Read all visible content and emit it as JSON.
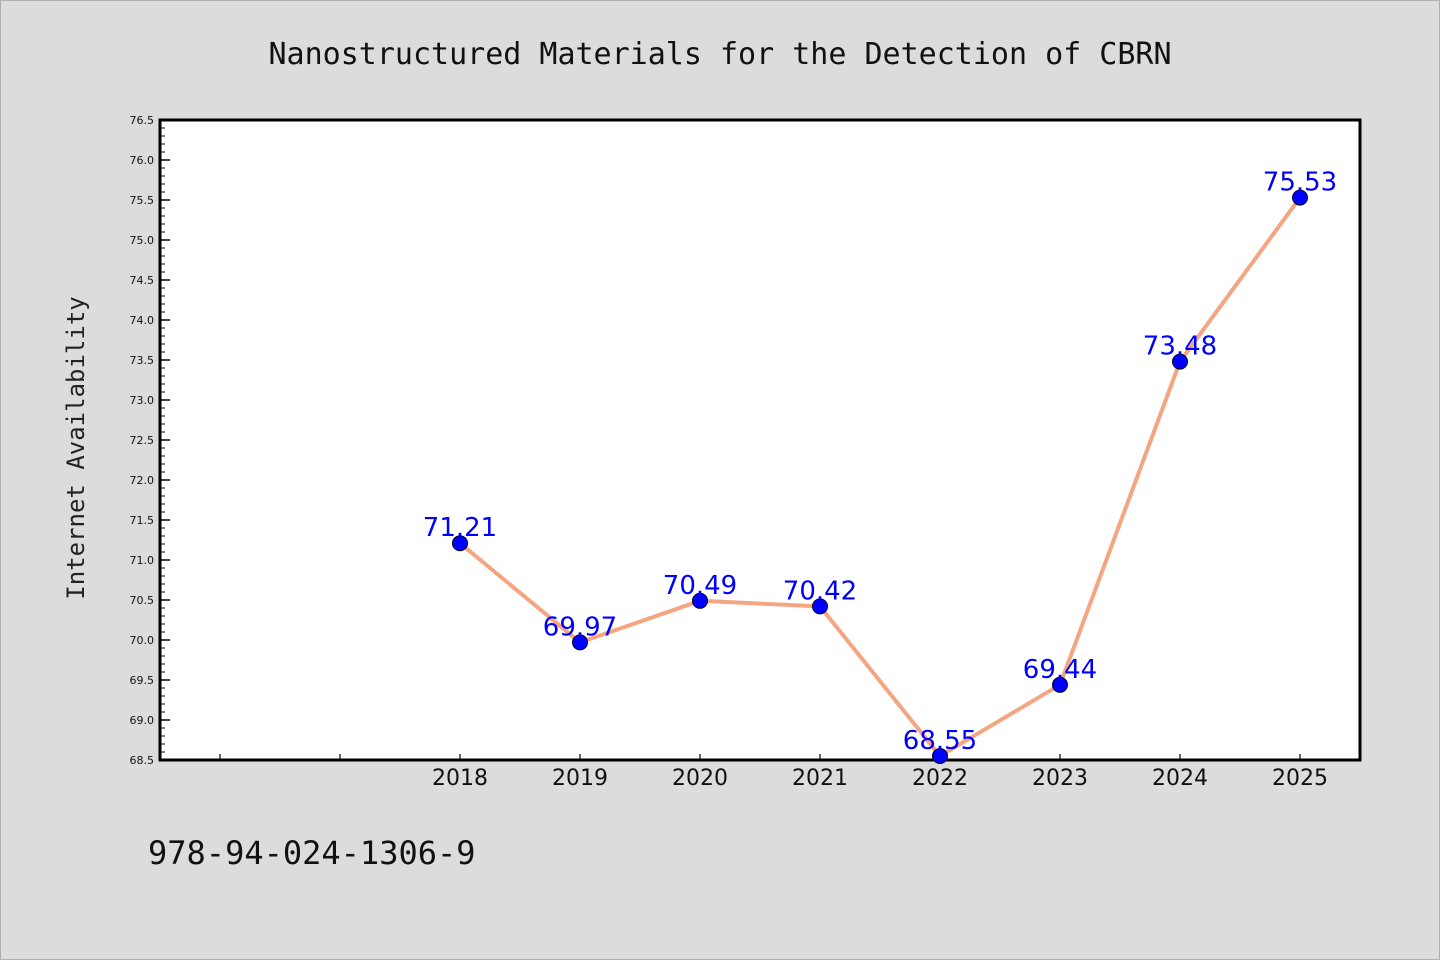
{
  "chart_data": {
    "type": "line",
    "title": "Nanostructured Materials for the Detection of CBRN",
    "xlabel": "",
    "ylabel": "Internet Availability",
    "categories": [
      "2018",
      "2019",
      "2020",
      "2021",
      "2022",
      "2023",
      "2024",
      "2025"
    ],
    "series": [
      {
        "values": [
          71.21,
          69.97,
          70.49,
          70.42,
          68.55,
          69.44,
          73.48,
          75.53
        ],
        "data_labels": [
          "71.21",
          "69.97",
          "70.49",
          "70.42",
          "68.55",
          "69.44",
          "73.48",
          "75.53"
        ]
      }
    ],
    "ylim": [
      68.5,
      76.5
    ],
    "y_ticks": [
      "68.5",
      "69.0",
      "69.5",
      "70.0",
      "70.5",
      "71.0",
      "71.5",
      "72.0",
      "72.5",
      "73.0",
      "73.5",
      "74.0",
      "74.5",
      "75.0",
      "75.5",
      "76.0",
      "76.5"
    ],
    "grid": false,
    "legend": "none",
    "colors": {
      "line": "#f4a582",
      "marker": "#0000ff",
      "label": "#0000ff",
      "background": "#dcdcdc",
      "plot_background": "#ffffff"
    }
  },
  "footer": {
    "isbn": "978-94-024-1306-9"
  }
}
